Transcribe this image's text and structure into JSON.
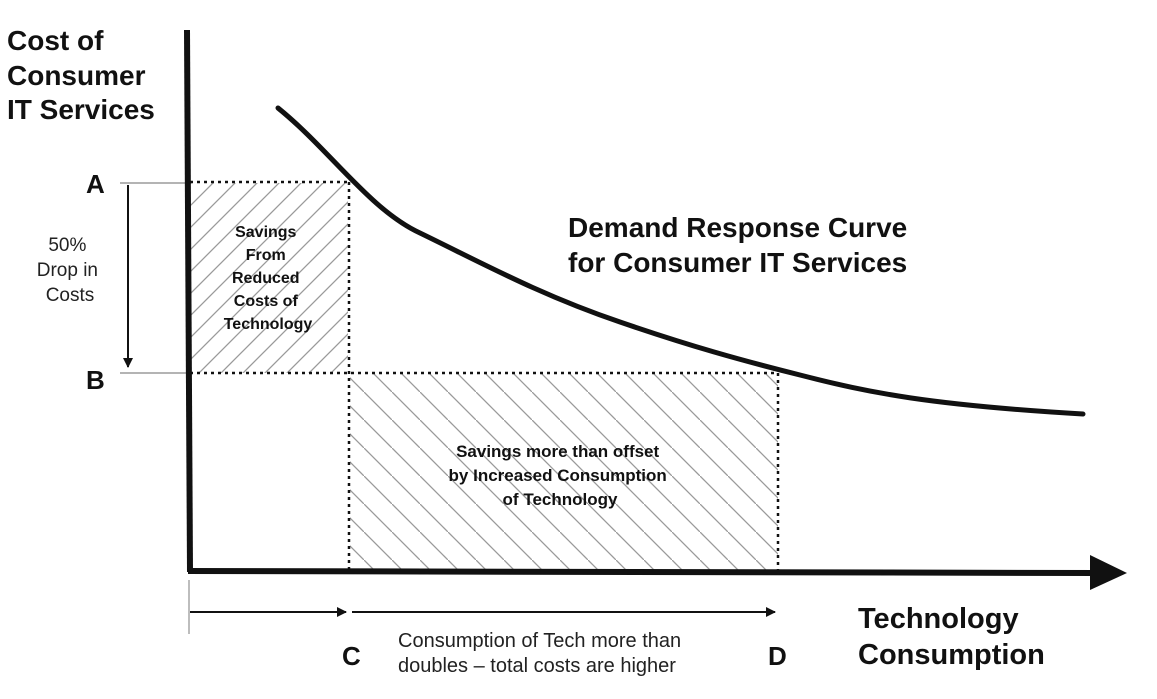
{
  "y_axis_title": [
    "Cost of",
    "Consumer",
    "IT Services"
  ],
  "x_axis_title": [
    "Technology",
    "Consumption"
  ],
  "curve_title": [
    "Demand Response Curve",
    "for Consumer IT Services"
  ],
  "points": {
    "a": "A",
    "b": "B",
    "c": "C",
    "d": "D"
  },
  "drop_label": [
    "50%",
    "Drop in",
    "Costs"
  ],
  "savings_box_label": [
    "Savings",
    "From",
    "Reduced",
    "Costs of",
    "Technology"
  ],
  "offset_box_label": [
    "Savings more than offset",
    "by Increased Consumption",
    "of Technology"
  ],
  "consumption_note": [
    "Consumption of Tech more than",
    "doubles – total costs are higher"
  ],
  "colors": {
    "ink": "#111111",
    "hatch": "#9a9a9a",
    "guide": "#888888"
  }
}
